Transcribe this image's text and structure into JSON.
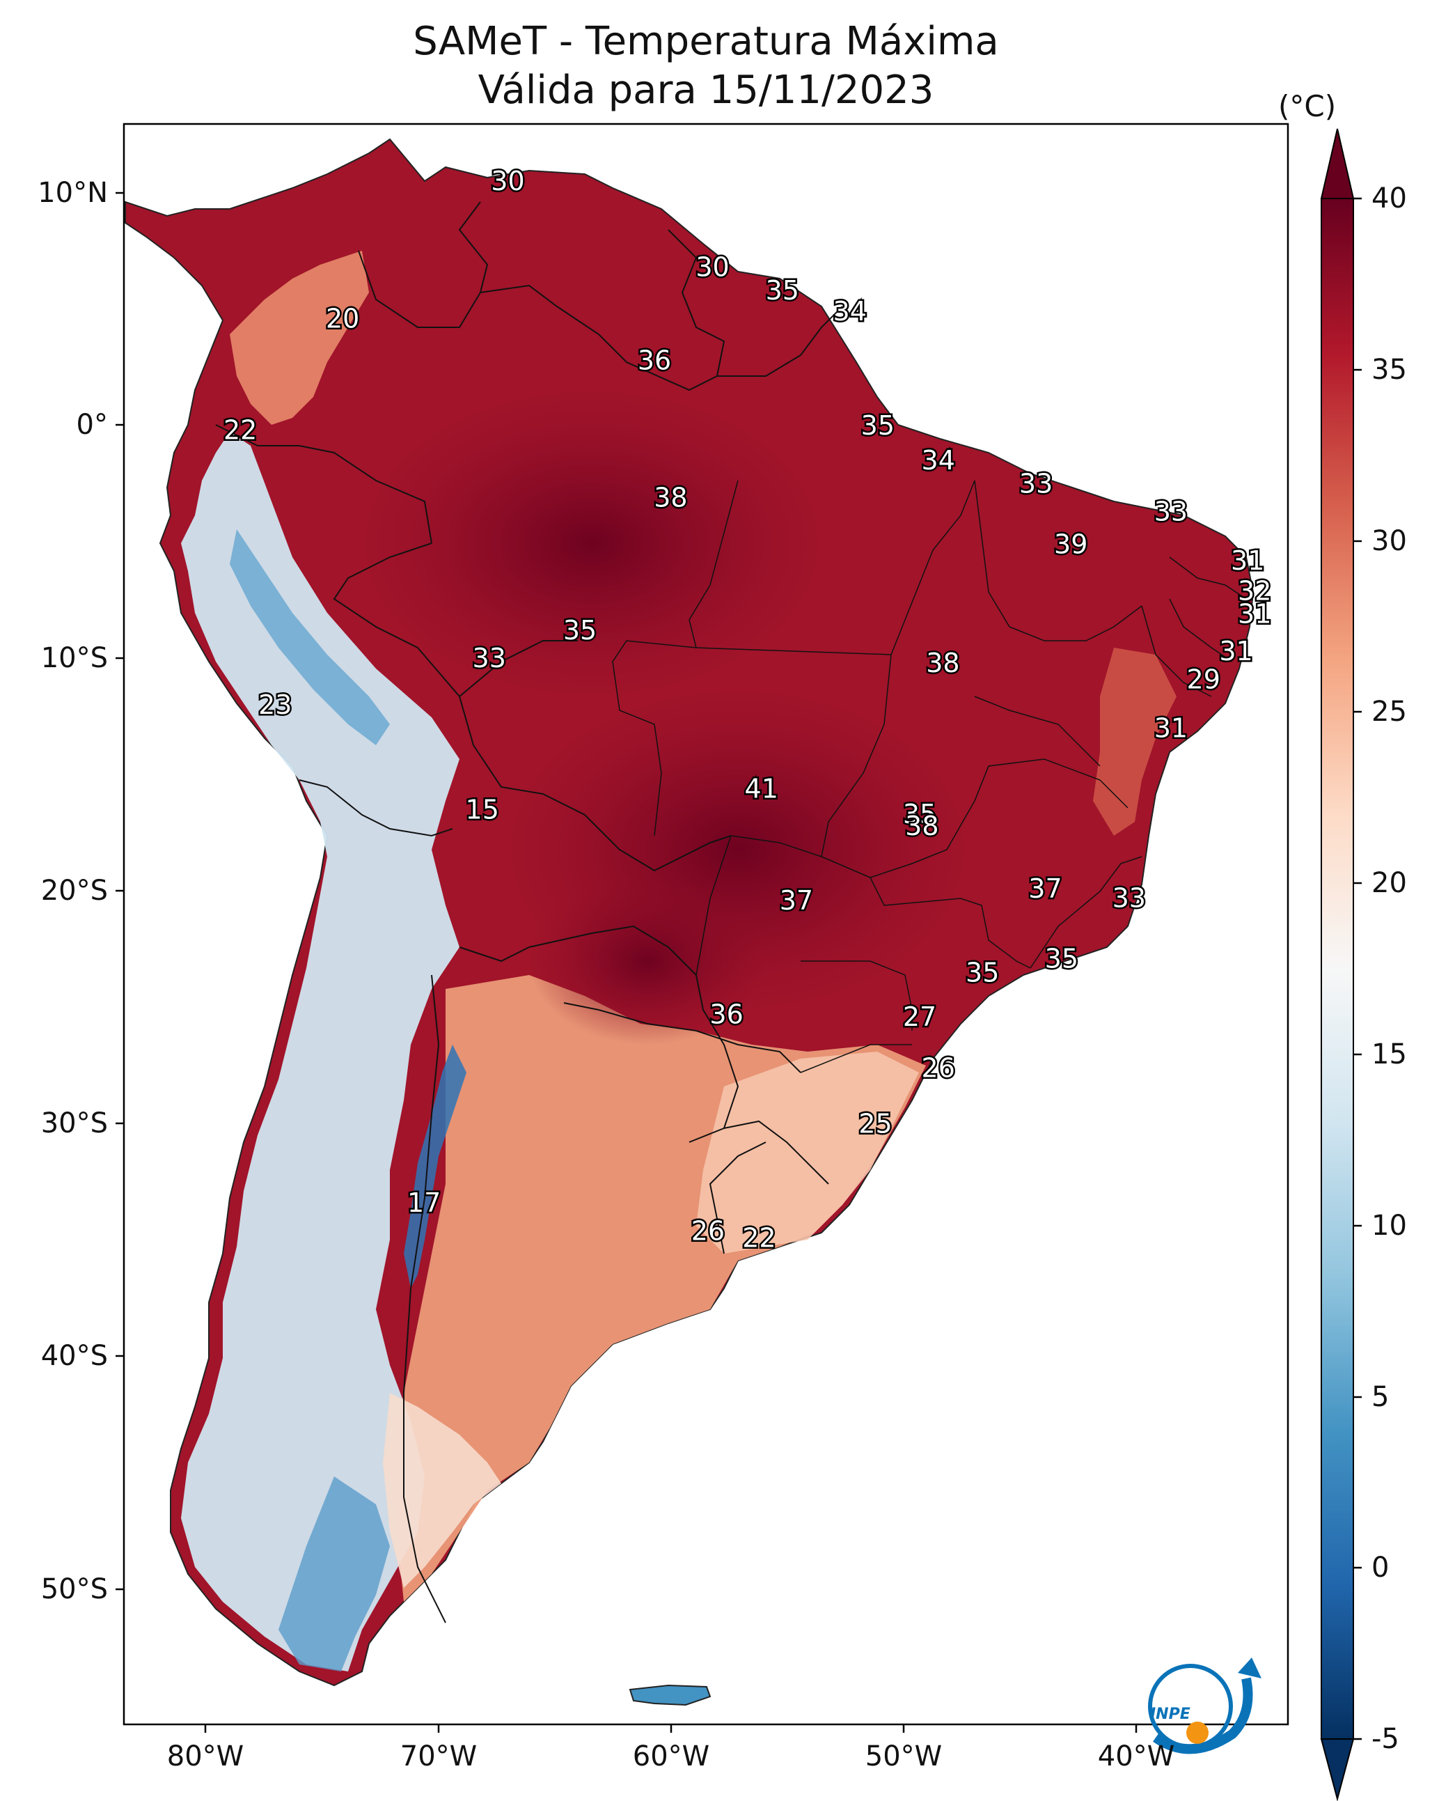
{
  "title_line1": "SAMeT - Temperatura Máxima",
  "title_line2": "Válida para 15/11/2023",
  "colorbar": {
    "unit": "(°C)",
    "ticks": [
      "40",
      "35",
      "30",
      "25",
      "20",
      "15",
      "10",
      "5",
      "0",
      "-5"
    ],
    "min": -5,
    "max": 40,
    "extend": "both",
    "colors": [
      "#053061",
      "#2166ac",
      "#4393c3",
      "#92c5de",
      "#d1e5f0",
      "#f7f7f7",
      "#fddbc7",
      "#f4a582",
      "#d6604d",
      "#b2182b",
      "#67001f"
    ]
  },
  "axes": {
    "lat_labels": [
      "10°N",
      "0°",
      "10°S",
      "20°S",
      "30°S",
      "40°S",
      "50°S"
    ],
    "lon_labels": [
      "80°W",
      "70°W",
      "60°W",
      "50°W",
      "40°W"
    ]
  },
  "stations": [
    {
      "value": "30",
      "lon": -67.0,
      "lat": 10.5
    },
    {
      "value": "20",
      "lon": -74.1,
      "lat": 4.6
    },
    {
      "value": "30",
      "lon": -58.2,
      "lat": 6.8
    },
    {
      "value": "35",
      "lon": -55.2,
      "lat": 5.8
    },
    {
      "value": "34",
      "lon": -52.3,
      "lat": 4.9
    },
    {
      "value": "36",
      "lon": -60.7,
      "lat": 2.8
    },
    {
      "value": "22",
      "lon": -78.5,
      "lat": -0.2
    },
    {
      "value": "35",
      "lon": -51.1,
      "lat": 0.0
    },
    {
      "value": "34",
      "lon": -48.5,
      "lat": -1.5
    },
    {
      "value": "33",
      "lon": -44.3,
      "lat": -2.5
    },
    {
      "value": "38",
      "lon": -60.0,
      "lat": -3.1
    },
    {
      "value": "33",
      "lon": -38.5,
      "lat": -3.7
    },
    {
      "value": "39",
      "lon": -42.8,
      "lat": -5.1
    },
    {
      "value": "31",
      "lon": -35.2,
      "lat": -5.8
    },
    {
      "value": "32",
      "lon": -34.9,
      "lat": -7.1
    },
    {
      "value": "31",
      "lon": -34.9,
      "lat": -8.1
    },
    {
      "value": "35",
      "lon": -63.9,
      "lat": -8.8
    },
    {
      "value": "33",
      "lon": -67.8,
      "lat": -10.0
    },
    {
      "value": "38",
      "lon": -48.3,
      "lat": -10.2
    },
    {
      "value": "31",
      "lon": -35.7,
      "lat": -9.7
    },
    {
      "value": "29",
      "lon": -37.1,
      "lat": -10.9
    },
    {
      "value": "23",
      "lon": -77.0,
      "lat": -12.0
    },
    {
      "value": "31",
      "lon": -38.5,
      "lat": -13.0
    },
    {
      "value": "41",
      "lon": -56.1,
      "lat": -15.6
    },
    {
      "value": "35",
      "lon": -49.3,
      "lat": -16.7
    },
    {
      "value": "15",
      "lon": -68.1,
      "lat": -16.5
    },
    {
      "value": "38",
      "lon": -49.2,
      "lat": -17.2
    },
    {
      "value": "37",
      "lon": -43.9,
      "lat": -19.9
    },
    {
      "value": "33",
      "lon": -40.3,
      "lat": -20.3
    },
    {
      "value": "37",
      "lon": -54.6,
      "lat": -20.4
    },
    {
      "value": "35",
      "lon": -43.2,
      "lat": -22.9
    },
    {
      "value": "35",
      "lon": -46.6,
      "lat": -23.5
    },
    {
      "value": "36",
      "lon": -57.6,
      "lat": -25.3
    },
    {
      "value": "27",
      "lon": -49.3,
      "lat": -25.4
    },
    {
      "value": "26",
      "lon": -48.5,
      "lat": -27.6
    },
    {
      "value": "25",
      "lon": -51.2,
      "lat": -30.0
    },
    {
      "value": "17",
      "lon": -70.6,
      "lat": -33.4
    },
    {
      "value": "26",
      "lon": -58.4,
      "lat": -34.6
    },
    {
      "value": "22",
      "lon": -56.2,
      "lat": -34.9
    }
  ]
}
